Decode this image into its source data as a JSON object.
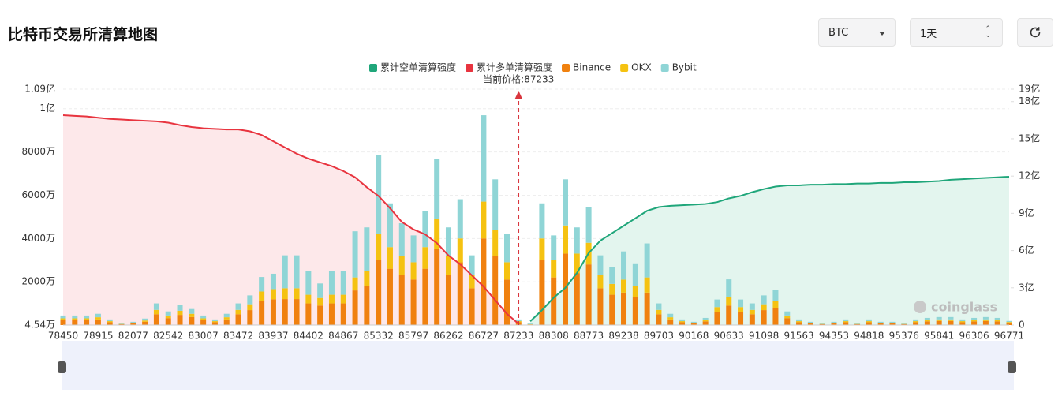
{
  "chart_data": {
    "type": "bar",
    "title": "比特币交易所清算地图",
    "annotation": "当前价格:87233",
    "watermark": "coinglass",
    "stacked": true,
    "grid": true,
    "categories": [
      "78450",
      null,
      null,
      "78915",
      null,
      null,
      "82077",
      null,
      null,
      "82542",
      null,
      null,
      "83007",
      null,
      null,
      "83472",
      null,
      null,
      "83937",
      null,
      null,
      "84402",
      null,
      null,
      "84867",
      null,
      null,
      "85332",
      null,
      null,
      "85797",
      null,
      null,
      "86262",
      null,
      null,
      "86727",
      null,
      null,
      "87233",
      null,
      null,
      "88308",
      null,
      null,
      "88773",
      null,
      null,
      "89238",
      null,
      null,
      "89703",
      null,
      null,
      "90168",
      null,
      null,
      "90633",
      null,
      null,
      "91098",
      null,
      null,
      "91563",
      null,
      null,
      "94353",
      null,
      null,
      "94818",
      null,
      null,
      "95376",
      null,
      null,
      "95841",
      null,
      null,
      "96306",
      null,
      null,
      "96771"
    ],
    "ylim": [
      4.54,
      10900
    ],
    "yticks": [
      {
        "value": 4.54,
        "label": "4.54万"
      },
      {
        "value": 2000,
        "label": "2000万"
      },
      {
        "value": 4000,
        "label": "4000万"
      },
      {
        "value": 6000,
        "label": "6000万"
      },
      {
        "value": 8000,
        "label": "8000万"
      },
      {
        "value": 10000,
        "label": "1亿"
      },
      {
        "value": 10900,
        "label": "1.09亿"
      }
    ],
    "y2lim": [
      0,
      19
    ],
    "y2ticks": [
      0,
      {
        "value": 3,
        "label": "3亿"
      },
      {
        "value": 6,
        "label": "6亿"
      },
      {
        "value": 9,
        "label": "9亿"
      },
      {
        "value": 12,
        "label": "12亿"
      },
      {
        "value": 15,
        "label": "15亿"
      },
      {
        "value": 18,
        "label": "18亿"
      },
      {
        "value": 19,
        "label": "19亿"
      }
    ],
    "series": [
      {
        "name": "累计空单清算强度",
        "type": "line",
        "axis": "y2",
        "color": "#1fa67a",
        "area_color": "#e3f5ee",
        "values": [
          null,
          null,
          null,
          null,
          null,
          null,
          null,
          null,
          null,
          null,
          null,
          null,
          null,
          null,
          null,
          null,
          null,
          null,
          null,
          null,
          null,
          null,
          null,
          null,
          null,
          null,
          null,
          null,
          null,
          null,
          null,
          null,
          null,
          null,
          null,
          null,
          null,
          null,
          null,
          null,
          0.3,
          1.2,
          2.2,
          3,
          4.2,
          5.8,
          6.8,
          7.4,
          8,
          8.6,
          9.2,
          9.5,
          9.6,
          9.65,
          9.7,
          9.75,
          9.9,
          10.2,
          10.4,
          10.7,
          10.95,
          11.15,
          11.25,
          11.25,
          11.3,
          11.3,
          11.35,
          11.35,
          11.4,
          11.4,
          11.45,
          11.45,
          11.5,
          11.5,
          11.55,
          11.6,
          11.7,
          11.75,
          11.8,
          11.85,
          11.9,
          11.95
        ]
      },
      {
        "name": "累计多单清算强度",
        "type": "line",
        "axis": "y2",
        "color": "#e8343f",
        "area_color": "#fde8ea",
        "values": [
          16.9,
          16.85,
          16.8,
          16.7,
          16.6,
          16.55,
          16.5,
          16.45,
          16.4,
          16.3,
          16.1,
          15.95,
          15.85,
          15.8,
          15.75,
          15.75,
          15.6,
          15.3,
          14.8,
          14.3,
          13.8,
          13.4,
          13.1,
          12.8,
          12.4,
          11.9,
          11.1,
          10.4,
          9.4,
          8.3,
          7.7,
          7.3,
          6.6,
          5.6,
          4.9,
          4,
          3.1,
          2,
          0.9,
          0.1,
          null,
          null,
          null,
          null,
          null,
          null,
          null,
          null,
          null,
          null,
          null,
          null,
          null,
          null,
          null,
          null,
          null,
          null,
          null,
          null,
          null,
          null,
          null,
          null,
          null,
          null,
          null,
          null,
          null,
          null,
          null,
          null,
          null,
          null,
          null,
          null,
          null,
          null,
          null,
          null,
          null,
          null
        ]
      },
      {
        "name": "Binance",
        "type": "bar",
        "color": "#f0810f",
        "values": [
          220,
          220,
          220,
          260,
          130,
          40,
          80,
          150,
          500,
          320,
          470,
          370,
          220,
          130,
          260,
          500,
          690,
          1110,
          1190,
          1200,
          1200,
          1000,
          900,
          1000,
          1000,
          1600,
          1800,
          3000,
          2600,
          2300,
          2100,
          2600,
          3500,
          2300,
          2900,
          1700,
          4000,
          3200,
          2100,
          130,
          30,
          3000,
          2200,
          3300,
          2400,
          2800,
          1700,
          1400,
          1500,
          1300,
          1500,
          500,
          260,
          130,
          80,
          170,
          600,
          900,
          600,
          500,
          690,
          800,
          320,
          130,
          80,
          40,
          80,
          130,
          40,
          130,
          80,
          80,
          40,
          130,
          170,
          190,
          190,
          130,
          170,
          190,
          170,
          100
        ]
      },
      {
        "name": "OKX",
        "type": "bar",
        "color": "#f5c211",
        "values": [
          90,
          90,
          90,
          100,
          50,
          10,
          30,
          60,
          200,
          120,
          190,
          150,
          90,
          50,
          100,
          200,
          270,
          440,
          470,
          500,
          500,
          400,
          350,
          400,
          400,
          600,
          700,
          1200,
          1000,
          900,
          800,
          1000,
          1400,
          900,
          1100,
          600,
          1700,
          1200,
          800,
          50,
          10,
          1000,
          800,
          1300,
          900,
          1000,
          600,
          500,
          600,
          500,
          700,
          200,
          100,
          50,
          30,
          60,
          230,
          400,
          230,
          200,
          270,
          300,
          120,
          50,
          30,
          10,
          30,
          50,
          10,
          50,
          30,
          30,
          10,
          50,
          60,
          70,
          70,
          50,
          60,
          70,
          60,
          40
        ]
      },
      {
        "name": "Bybit",
        "type": "bar",
        "color": "#8fd5d6",
        "values": [
          130,
          130,
          130,
          160,
          80,
          20,
          40,
          90,
          300,
          190,
          270,
          220,
          130,
          80,
          160,
          300,
          410,
          670,
          710,
          1520,
          1520,
          1080,
          670,
          1080,
          1080,
          2130,
          2010,
          3640,
          2020,
          1500,
          1240,
          1650,
          2760,
          1310,
          1810,
          920,
          3990,
          2330,
          1320,
          80,
          30,
          1620,
          1140,
          2130,
          1210,
          1640,
          920,
          760,
          1300,
          1050,
          1570,
          300,
          160,
          80,
          40,
          100,
          350,
          810,
          350,
          300,
          410,
          530,
          190,
          80,
          40,
          20,
          40,
          80,
          20,
          80,
          40,
          40,
          20,
          80,
          100,
          110,
          110,
          80,
          100,
          110,
          100,
          50
        ]
      }
    ]
  },
  "controls": {
    "symbol": "BTC",
    "period": "1天"
  }
}
